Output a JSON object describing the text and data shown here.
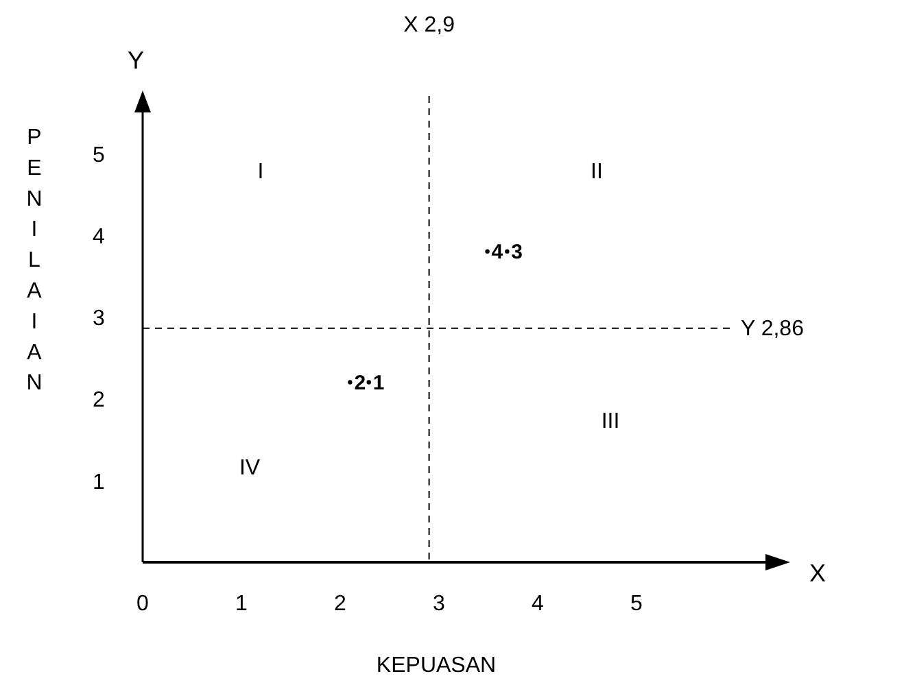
{
  "chart_data": {
    "type": "scatter",
    "xlabel": "KEPUASAN",
    "ylabel": "PENILAIAN",
    "x": [
      3.49,
      3.69,
      2.1,
      2.29
    ],
    "values": [
      3.8,
      3.8,
      2.2,
      2.2
    ],
    "color": "#000000",
    "marker": "circle",
    "xlim": [
      0,
      6.5
    ],
    "ylim": [
      0,
      5.7
    ],
    "xticks": [
      0,
      1,
      2,
      3,
      4,
      5
    ],
    "yticks": [
      1,
      2,
      3,
      4,
      5
    ],
    "grid": false,
    "ref_lines": [
      {
        "axis": "x",
        "value": 2.9,
        "label": "X 2,9",
        "line_style": "dashed"
      },
      {
        "axis": "y",
        "value": 2.86,
        "label": "Y 2,86",
        "line_style": "dashed"
      }
    ],
    "annotations": [
      {
        "text": "4",
        "x": 3.49,
        "y": 3.8
      },
      {
        "text": "3",
        "x": 3.69,
        "y": 3.8
      },
      {
        "text": "2",
        "x": 2.1,
        "y": 2.2
      },
      {
        "text": "1",
        "x": 2.29,
        "y": 2.2
      },
      "I",
      "II",
      "III",
      "IV",
      "X",
      "Y"
    ]
  }
}
